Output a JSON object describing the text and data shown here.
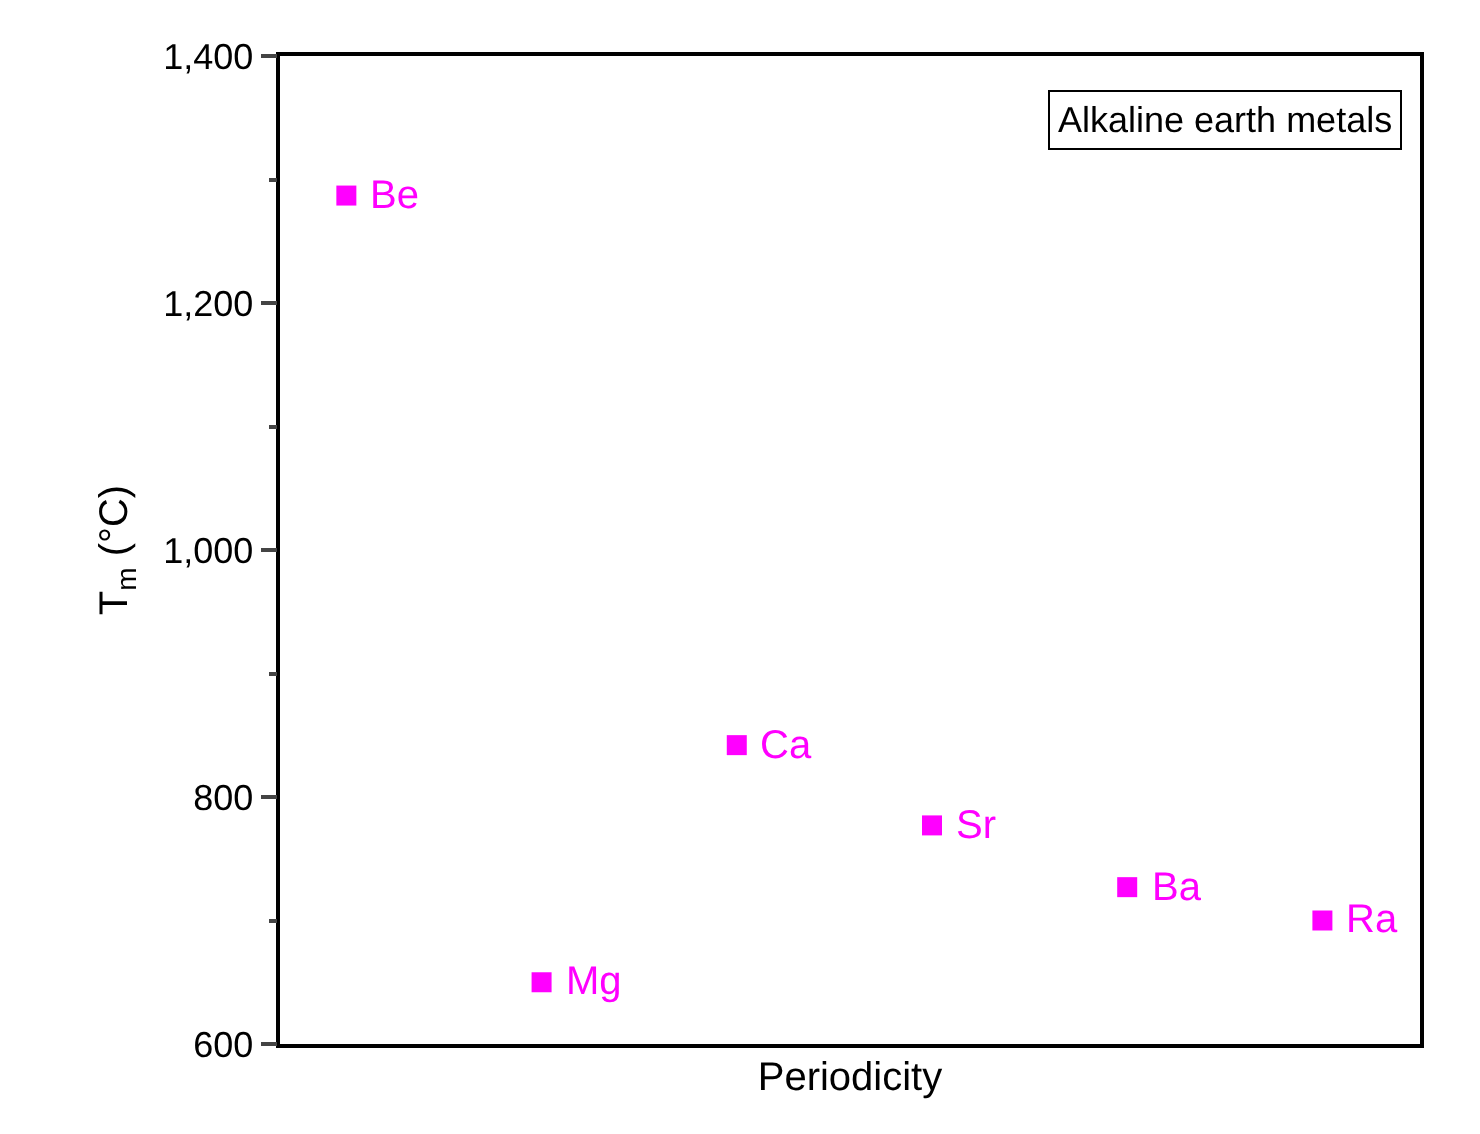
{
  "chart_data": {
    "type": "scatter",
    "xlabel": "Periodicity",
    "ylabel": "T$_{m}$ (°C)",
    "categories": [
      null,
      null,
      null,
      null,
      null,
      null
    ],
    "series": [
      {
        "name": "Be",
        "color": "#ff00ff",
        "values": [
          1287,
          null,
          null,
          null,
          null,
          null
        ]
      },
      {
        "name": "Mg",
        "color": "#ff00ff",
        "values": [
          null,
          650,
          null,
          null,
          null,
          null
        ]
      },
      {
        "name": "Ca",
        "color": "#ff00ff",
        "values": [
          null,
          null,
          842,
          null,
          null,
          null
        ]
      },
      {
        "name": "Sr",
        "color": "#ff00ff",
        "values": [
          null,
          null,
          null,
          777,
          null,
          null
        ]
      },
      {
        "name": "Ba",
        "color": "#ff00ff",
        "values": [
          null,
          null,
          null,
          null,
          727,
          null
        ]
      },
      {
        "name": "Ra",
        "color": "#ff00ff",
        "values": [
          null,
          null,
          null,
          null,
          null,
          700
        ]
      }
    ],
    "marker": "square",
    "grid": false,
    "legend": false,
    "tick_labels": "y",
    "ylim": [
      600,
      1400
    ],
    "yticks": [
      600,
      800,
      {
        "value": 1000,
        "label": "1,000"
      },
      {
        "value": 1200,
        "label": "1,200"
      },
      {
        "value": 1400,
        "label": "1,400"
      }
    ],
    "annotations": [
      "Alkaline earth metals"
    ]
  }
}
